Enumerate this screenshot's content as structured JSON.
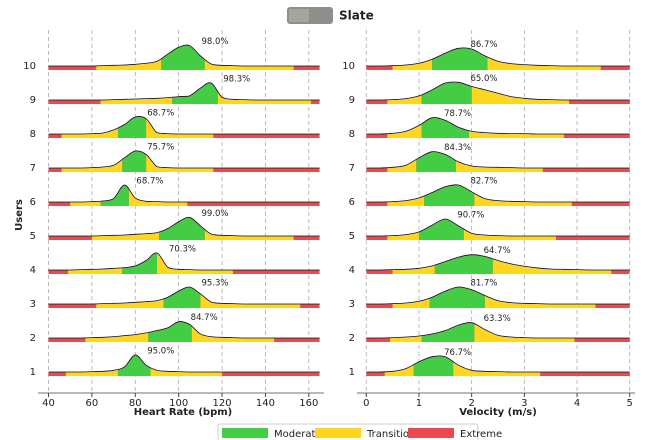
{
  "title": "Slate",
  "legend": [
    {
      "name": "Moderate",
      "color": "#44cc44"
    },
    {
      "name": "Transition",
      "color": "#ffd61f"
    },
    {
      "name": "Extreme",
      "color": "#e84a4f"
    }
  ],
  "chart_data": [
    {
      "type": "ridgeline",
      "xlabel": "Heart Rate (bpm)",
      "ylabel": "Users",
      "xlim": [
        37,
        167
      ],
      "xticks": [
        40,
        60,
        80,
        100,
        120,
        140,
        160
      ],
      "grid": true,
      "x": [
        40,
        45,
        50,
        55,
        60,
        65,
        70,
        75,
        80,
        85,
        90,
        95,
        100,
        105,
        110,
        115,
        120,
        125,
        130,
        135,
        140,
        145,
        150,
        155,
        160,
        165
      ],
      "rows": [
        {
          "name": "1",
          "moderate": [
            72,
            87
          ],
          "transition": [
            48,
            120
          ],
          "value": 95.0,
          "value_label": "95.0%",
          "density": [
            0,
            0,
            0,
            0,
            0.01,
            0.02,
            0.05,
            0.15,
            0.5,
            0.2,
            0.05,
            0.02,
            0.01,
            0,
            0,
            0,
            0,
            0,
            0,
            0,
            0,
            0,
            0,
            0,
            0,
            0
          ]
        },
        {
          "name": "2",
          "moderate": [
            86,
            106
          ],
          "transition": [
            57,
            144
          ],
          "value": 84.7,
          "value_label": "84.7%",
          "density": [
            0,
            0,
            0,
            0,
            0.01,
            0.02,
            0.04,
            0.07,
            0.1,
            0.15,
            0.22,
            0.3,
            0.48,
            0.4,
            0.12,
            0.04,
            0.02,
            0.01,
            0,
            0,
            0,
            0,
            0,
            0,
            0,
            0
          ]
        },
        {
          "name": "3",
          "moderate": [
            93,
            110
          ],
          "transition": [
            62,
            156
          ],
          "value": 95.3,
          "value_label": "95.3%",
          "density": [
            0,
            0,
            0,
            0,
            0,
            0.01,
            0.02,
            0.03,
            0.05,
            0.07,
            0.1,
            0.2,
            0.38,
            0.5,
            0.3,
            0.06,
            0.02,
            0.01,
            0,
            0,
            0,
            0,
            0,
            0,
            0,
            0
          ]
        },
        {
          "name": "4",
          "moderate": [
            74,
            90
          ],
          "transition": [
            49,
            125
          ],
          "value": 70.3,
          "value_label": "70.3%",
          "density": [
            0,
            0,
            0,
            0.01,
            0.02,
            0.03,
            0.05,
            0.07,
            0.12,
            0.28,
            0.5,
            0.08,
            0.02,
            0.01,
            0,
            0,
            0,
            0,
            0,
            0,
            0,
            0,
            0,
            0,
            0,
            0
          ]
        },
        {
          "name": "5",
          "moderate": [
            91,
            112
          ],
          "transition": [
            60,
            153
          ],
          "value": 99.0,
          "value_label": "99.0%",
          "density": [
            0,
            0,
            0,
            0,
            0,
            0.01,
            0.02,
            0.03,
            0.05,
            0.07,
            0.1,
            0.22,
            0.42,
            0.55,
            0.3,
            0.06,
            0.02,
            0.01,
            0,
            0,
            0,
            0,
            0,
            0,
            0,
            0
          ]
        },
        {
          "name": "6",
          "moderate": [
            64,
            77
          ],
          "transition": [
            50,
            104
          ],
          "value": 68.7,
          "value_label": "68.7%",
          "density": [
            0,
            0,
            0,
            0,
            0.01,
            0.03,
            0.1,
            0.5,
            0.12,
            0.02,
            0.01,
            0,
            0,
            0,
            0,
            0,
            0,
            0,
            0,
            0,
            0,
            0,
            0,
            0,
            0,
            0
          ]
        },
        {
          "name": "7",
          "moderate": [
            74,
            85
          ],
          "transition": [
            46,
            116
          ],
          "value": 75.7,
          "value_label": "75.7%",
          "density": [
            0,
            0,
            0,
            0,
            0.01,
            0.03,
            0.08,
            0.3,
            0.5,
            0.4,
            0.04,
            0.01,
            0,
            0,
            0,
            0,
            0,
            0,
            0,
            0,
            0,
            0,
            0,
            0,
            0,
            0
          ]
        },
        {
          "name": "8",
          "moderate": [
            72,
            85
          ],
          "transition": [
            46,
            116
          ],
          "value": 68.7,
          "value_label": "68.7%",
          "density": [
            0,
            0,
            0,
            0,
            0.01,
            0.03,
            0.12,
            0.28,
            0.5,
            0.45,
            0.04,
            0.01,
            0,
            0,
            0,
            0,
            0,
            0,
            0,
            0,
            0,
            0,
            0,
            0,
            0,
            0
          ]
        },
        {
          "name": "9",
          "moderate": [
            97,
            118
          ],
          "transition": [
            64,
            161
          ],
          "value": 98.3,
          "value_label": "98.3%",
          "density": [
            0,
            0,
            0,
            0,
            0,
            0,
            0.01,
            0.02,
            0.03,
            0.04,
            0.05,
            0.07,
            0.1,
            0.12,
            0.35,
            0.5,
            0.08,
            0.02,
            0.01,
            0,
            0,
            0,
            0,
            0,
            0,
            0
          ]
        },
        {
          "name": "10",
          "moderate": [
            92,
            112
          ],
          "transition": [
            62,
            153
          ],
          "value": 98.0,
          "value_label": "98.0%",
          "density": [
            0,
            0,
            0,
            0,
            0,
            0.01,
            0.02,
            0.03,
            0.05,
            0.08,
            0.14,
            0.35,
            0.55,
            0.6,
            0.3,
            0.06,
            0.02,
            0.01,
            0,
            0,
            0,
            0,
            0,
            0,
            0,
            0
          ]
        }
      ]
    },
    {
      "type": "ridgeline",
      "xlabel": "Velocity (m/s)",
      "xlim": [
        -0.1,
        5.1
      ],
      "xticks": [
        0,
        1,
        2,
        3,
        4,
        5
      ],
      "grid": true,
      "x": [
        0,
        0.25,
        0.5,
        0.75,
        1,
        1.25,
        1.5,
        1.75,
        2,
        2.25,
        2.5,
        2.75,
        3,
        3.25,
        3.5,
        3.75,
        4,
        4.25,
        4.5,
        4.75,
        5
      ],
      "rows": [
        {
          "name": "1",
          "moderate": [
            0.9,
            1.65
          ],
          "transition": [
            0.35,
            3.3
          ],
          "value": 76.7,
          "value_label": "76.7%",
          "density": [
            0,
            0,
            0.02,
            0.1,
            0.3,
            0.45,
            0.45,
            0.2,
            0.05,
            0.02,
            0.01,
            0,
            0,
            0,
            0,
            0,
            0,
            0,
            0,
            0,
            0
          ]
        },
        {
          "name": "2",
          "moderate": [
            1.05,
            2.05
          ],
          "transition": [
            0.45,
            3.95
          ],
          "value": 63.3,
          "value_label": "63.3%",
          "density": [
            0,
            0,
            0.01,
            0.03,
            0.06,
            0.12,
            0.22,
            0.38,
            0.45,
            0.25,
            0.08,
            0.03,
            0.01,
            0,
            0,
            0,
            0,
            0,
            0,
            0,
            0
          ]
        },
        {
          "name": "3",
          "moderate": [
            1.2,
            2.25
          ],
          "transition": [
            0.5,
            4.35
          ],
          "value": 81.7,
          "value_label": "81.7%",
          "density": [
            0,
            0,
            0.01,
            0.03,
            0.08,
            0.2,
            0.38,
            0.5,
            0.42,
            0.25,
            0.1,
            0.04,
            0.02,
            0.01,
            0,
            0,
            0,
            0,
            0,
            0,
            0
          ]
        },
        {
          "name": "4",
          "moderate": [
            1.3,
            2.4
          ],
          "transition": [
            0.5,
            4.65
          ],
          "value": 64.7,
          "value_label": "64.7%",
          "density": [
            0,
            0,
            0.01,
            0.02,
            0.05,
            0.12,
            0.25,
            0.38,
            0.45,
            0.4,
            0.28,
            0.18,
            0.11,
            0.06,
            0.03,
            0.02,
            0.01,
            0,
            0,
            0,
            0
          ]
        },
        {
          "name": "5",
          "moderate": [
            1.0,
            1.85
          ],
          "transition": [
            0.4,
            3.6
          ],
          "value": 90.7,
          "value_label": "90.7%",
          "density": [
            0,
            0,
            0.01,
            0.04,
            0.12,
            0.32,
            0.5,
            0.3,
            0.08,
            0.03,
            0.01,
            0,
            0,
            0,
            0,
            0,
            0,
            0,
            0,
            0,
            0
          ]
        },
        {
          "name": "6",
          "moderate": [
            1.1,
            2.05
          ],
          "transition": [
            0.4,
            3.9
          ],
          "value": 82.7,
          "value_label": "82.7%",
          "density": [
            0,
            0,
            0.01,
            0.04,
            0.12,
            0.28,
            0.45,
            0.5,
            0.3,
            0.1,
            0.04,
            0.02,
            0.01,
            0,
            0,
            0,
            0,
            0,
            0,
            0,
            0
          ]
        },
        {
          "name": "7",
          "moderate": [
            0.95,
            1.7
          ],
          "transition": [
            0.4,
            3.35
          ],
          "value": 84.3,
          "value_label": "84.3%",
          "density": [
            0,
            0,
            0.02,
            0.08,
            0.3,
            0.48,
            0.4,
            0.18,
            0.06,
            0.03,
            0.02,
            0.01,
            0,
            0,
            0,
            0,
            0,
            0,
            0,
            0,
            0
          ]
        },
        {
          "name": "8",
          "moderate": [
            1.05,
            1.95
          ],
          "transition": [
            0.4,
            3.75
          ],
          "value": 78.7,
          "value_label": "78.7%",
          "density": [
            0,
            0,
            0.02,
            0.08,
            0.25,
            0.48,
            0.4,
            0.2,
            0.08,
            0.04,
            0.02,
            0.01,
            0.01,
            0,
            0,
            0,
            0,
            0,
            0,
            0,
            0
          ]
        },
        {
          "name": "9",
          "moderate": [
            1.05,
            2.0
          ],
          "transition": [
            0.4,
            3.85
          ],
          "value": 65.0,
          "value_label": "65.0%",
          "density": [
            0,
            0,
            0.01,
            0.04,
            0.12,
            0.3,
            0.5,
            0.52,
            0.4,
            0.3,
            0.2,
            0.1,
            0.05,
            0.02,
            0.01,
            0,
            0,
            0,
            0,
            0,
            0
          ]
        },
        {
          "name": "10",
          "moderate": [
            1.25,
            2.3
          ],
          "transition": [
            0.5,
            4.45
          ],
          "value": 86.7,
          "value_label": "86.7%",
          "density": [
            0,
            0,
            0.01,
            0.03,
            0.08,
            0.2,
            0.38,
            0.52,
            0.5,
            0.3,
            0.14,
            0.07,
            0.04,
            0.02,
            0.01,
            0,
            0,
            0,
            0,
            0,
            0
          ]
        }
      ]
    }
  ]
}
